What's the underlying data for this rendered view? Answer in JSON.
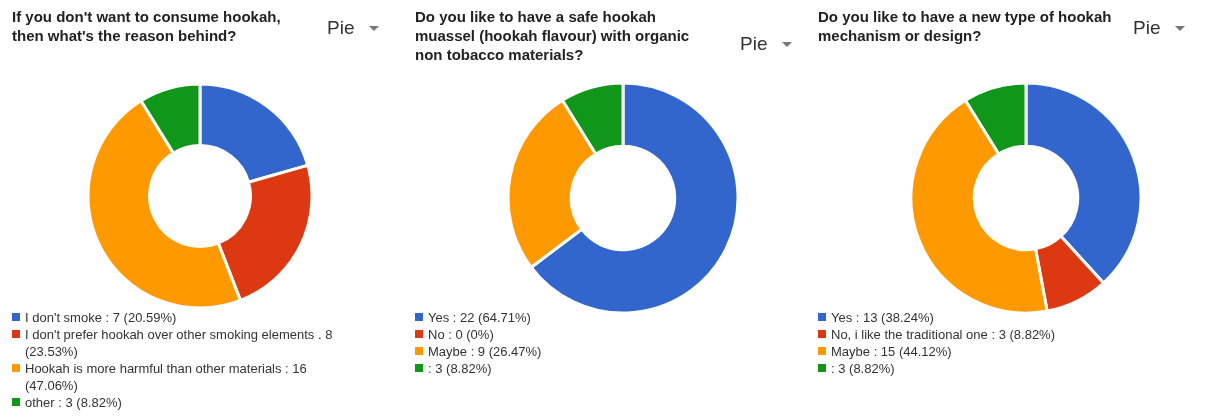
{
  "chart_data": [
    {
      "type": "donut",
      "title": "If you don't want to consume hookah, then what's the reason behind?",
      "annotations": [
        "Pie"
      ],
      "categories": [
        "I don't smoke : 7 (20.59%)",
        "I don't prefer hookah over other smoking elements . 8 (23.53%)",
        "Hookah is more harmful than other materials : 16 (47.06%)",
        "other : 3 (8.82%)"
      ],
      "values": [
        7,
        8,
        16,
        3
      ],
      "colors": [
        "#3366cc",
        "#dc3912",
        "#ff9900",
        "#109618"
      ],
      "legend": "bottom"
    },
    {
      "type": "donut",
      "title": "Do you like to have a safe hookah muassel (hookah flavour) with organic non tobacco materials?",
      "annotations": [
        "Pie"
      ],
      "categories": [
        "Yes : 22 (64.71%)",
        "No : 0 (0%)",
        "Maybe : 9 (26.47%)",
        " : 3 (8.82%)"
      ],
      "values": [
        22,
        0,
        9,
        3
      ],
      "colors": [
        "#3366cc",
        "#dc3912",
        "#ff9900",
        "#109618"
      ],
      "legend": "bottom"
    },
    {
      "type": "donut",
      "title": "Do you like to have a new type of hookah mechanism or design?",
      "annotations": [
        "Pie"
      ],
      "categories": [
        "Yes : 13 (38.24%)",
        "No, i like the traditional one : 3 (8.82%)",
        "Maybe : 15 (44.12%)",
        " : 3 (8.82%)"
      ],
      "values": [
        13,
        3,
        15,
        3
      ],
      "colors": [
        "#3366cc",
        "#dc3912",
        "#ff9900",
        "#109618"
      ],
      "legend": "bottom"
    }
  ]
}
